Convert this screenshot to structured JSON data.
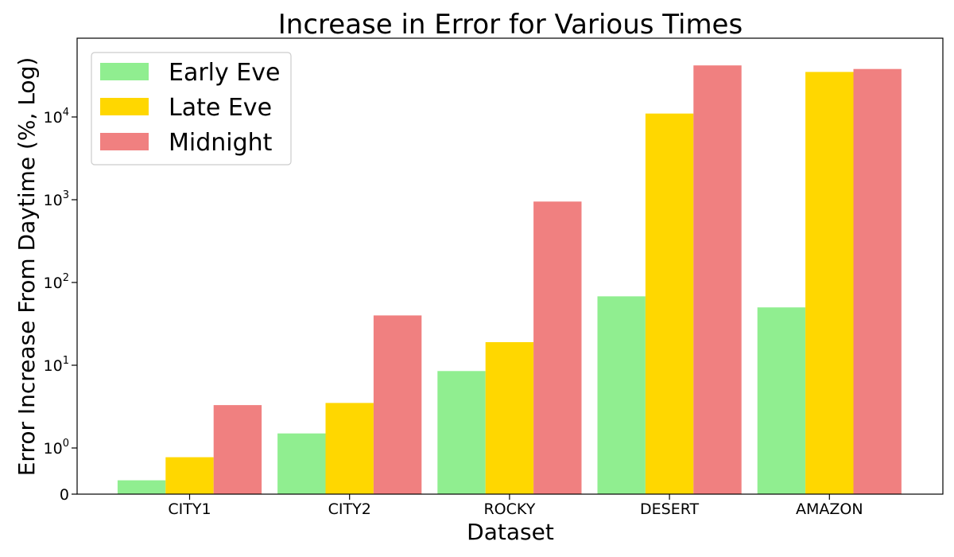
{
  "chart_data": {
    "type": "bar",
    "title": "Increase in Error for Various Times",
    "xlabel": "Dataset",
    "ylabel": "Error Increase From Daytime (%, Log)",
    "yscale": "symlog",
    "ylim": [
      0,
      45000
    ],
    "categories": [
      "CITY1",
      "CITY2",
      "ROCKY",
      "DESERT",
      "AMAZON"
    ],
    "series": [
      {
        "name": "Early Eve",
        "color": "#90ee90",
        "values": [
          0.3,
          1.5,
          8.5,
          68,
          50
        ]
      },
      {
        "name": "Late Eve",
        "color": "#ffd700",
        "values": [
          0.8,
          3.5,
          19,
          11000,
          35000
        ]
      },
      {
        "name": "Midnight",
        "color": "#f08080",
        "values": [
          3.3,
          40,
          950,
          42000,
          38000
        ]
      }
    ],
    "yticks": [
      {
        "value": 0,
        "base": "0",
        "exp": ""
      },
      {
        "value": 1,
        "base": "10",
        "exp": "0"
      },
      {
        "value": 10,
        "base": "10",
        "exp": "1"
      },
      {
        "value": 100,
        "base": "10",
        "exp": "2"
      },
      {
        "value": 1000,
        "base": "10",
        "exp": "3"
      },
      {
        "value": 10000,
        "base": "10",
        "exp": "4"
      }
    ],
    "legend": {
      "placement": "top-left"
    },
    "grid": false
  }
}
